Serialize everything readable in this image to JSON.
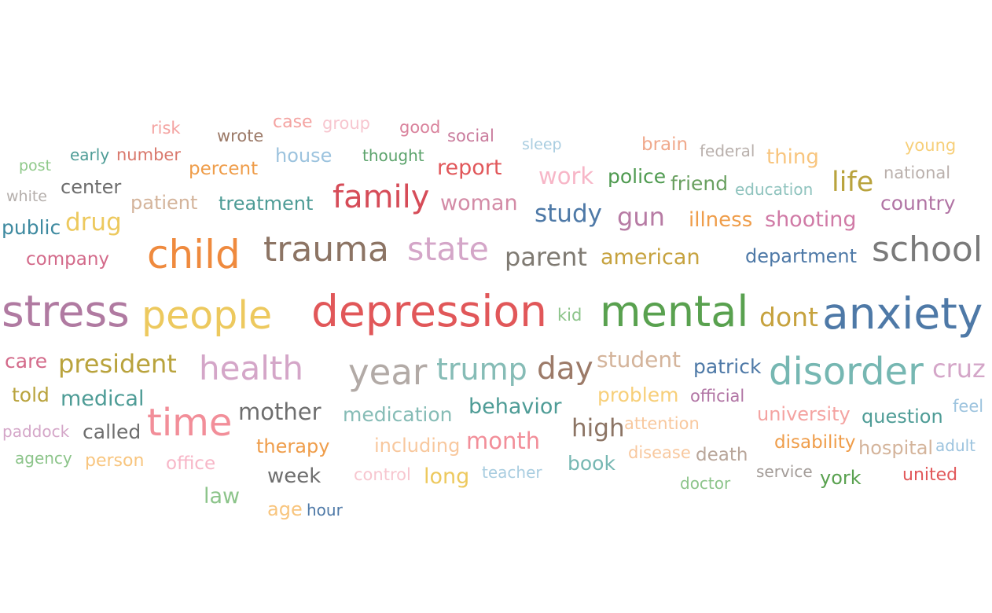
{
  "words": [
    {
      "text": "risk",
      "color": "#f4a3a1"
    },
    {
      "text": "wrote",
      "color": "#9c7a68"
    },
    {
      "text": "case",
      "color": "#f4a3a1"
    },
    {
      "text": "group",
      "color": "#f7c6cf"
    },
    {
      "text": "good",
      "color": "#d9829c"
    },
    {
      "text": "social",
      "color": "#c97b9c"
    },
    {
      "text": "sleep",
      "color": "#a9cde0"
    },
    {
      "text": "brain",
      "color": "#f0a98c"
    },
    {
      "text": "federal",
      "color": "#b9b0ac"
    },
    {
      "text": "thing",
      "color": "#f8c57e"
    },
    {
      "text": "young",
      "color": "#f7cf79"
    },
    {
      "text": "post",
      "color": "#8fc98a"
    },
    {
      "text": "early",
      "color": "#4e9c96"
    },
    {
      "text": "number",
      "color": "#d9786c"
    },
    {
      "text": "percent",
      "color": "#ef9d4a"
    },
    {
      "text": "house",
      "color": "#9cc3de"
    },
    {
      "text": "thought",
      "color": "#5ba36b"
    },
    {
      "text": "report",
      "color": "#e1575a"
    },
    {
      "text": "work",
      "color": "#f7b6c7"
    },
    {
      "text": "police",
      "color": "#4e9a4f"
    },
    {
      "text": "friend",
      "color": "#6aa060"
    },
    {
      "text": "education",
      "color": "#8fc3be"
    },
    {
      "text": "life",
      "color": "#b9a33d"
    },
    {
      "text": "national",
      "color": "#bab0ac"
    },
    {
      "text": "white",
      "color": "#b4aeab"
    },
    {
      "text": "center",
      "color": "#6e6e6e"
    },
    {
      "text": "patient",
      "color": "#d4b49b"
    },
    {
      "text": "treatment",
      "color": "#4e9c96"
    },
    {
      "text": "family",
      "color": "#d64c58"
    },
    {
      "text": "woman",
      "color": "#d38ba6"
    },
    {
      "text": "study",
      "color": "#4e79a7"
    },
    {
      "text": "gun",
      "color": "#b77ba4"
    },
    {
      "text": "illness",
      "color": "#ef9d4a"
    },
    {
      "text": "shooting",
      "color": "#d07aa6"
    },
    {
      "text": "country",
      "color": "#b174a4"
    },
    {
      "text": "public",
      "color": "#3e8aa0"
    },
    {
      "text": "drug",
      "color": "#edc95e"
    },
    {
      "text": "company",
      "color": "#d36a8a"
    },
    {
      "text": "child",
      "color": "#ef8a3e"
    },
    {
      "text": "trauma",
      "color": "#8c7464"
    },
    {
      "text": "state",
      "color": "#d4a6c8"
    },
    {
      "text": "parent",
      "color": "#7f7a72"
    },
    {
      "text": "american",
      "color": "#c6a23e"
    },
    {
      "text": "department",
      "color": "#4e79a7"
    },
    {
      "text": "school",
      "color": "#7a7a7a"
    },
    {
      "text": "stress",
      "color": "#b07aa1"
    },
    {
      "text": "people",
      "color": "#edc95e"
    },
    {
      "text": "depression",
      "color": "#e15759"
    },
    {
      "text": "kid",
      "color": "#8cc48a"
    },
    {
      "text": "mental",
      "color": "#59a14f"
    },
    {
      "text": "dont",
      "color": "#c6a23e"
    },
    {
      "text": "anxiety",
      "color": "#4e79a7"
    },
    {
      "text": "care",
      "color": "#d36a8a"
    },
    {
      "text": "president",
      "color": "#b9a33d"
    },
    {
      "text": "health",
      "color": "#d4a6c8"
    },
    {
      "text": "year",
      "color": "#b2aaa6"
    },
    {
      "text": "trump",
      "color": "#86bcb6"
    },
    {
      "text": "day",
      "color": "#9c7a68"
    },
    {
      "text": "student",
      "color": "#d4b49b"
    },
    {
      "text": "patrick",
      "color": "#4e79a7"
    },
    {
      "text": "disorder",
      "color": "#76b7b2"
    },
    {
      "text": "cruz",
      "color": "#d4a6c8"
    },
    {
      "text": "told",
      "color": "#b9a33d"
    },
    {
      "text": "medical",
      "color": "#4e9c96"
    },
    {
      "text": "time",
      "color": "#f28e99"
    },
    {
      "text": "mother",
      "color": "#6e6e6e"
    },
    {
      "text": "medication",
      "color": "#86bcb6"
    },
    {
      "text": "behavior",
      "color": "#4e9c96"
    },
    {
      "text": "problem",
      "color": "#f7cf79"
    },
    {
      "text": "official",
      "color": "#b174a4"
    },
    {
      "text": "university",
      "color": "#f4a3a1"
    },
    {
      "text": "question",
      "color": "#4e9c96"
    },
    {
      "text": "feel",
      "color": "#9cc3de"
    },
    {
      "text": "paddock",
      "color": "#d4a6c8"
    },
    {
      "text": "called",
      "color": "#6e6e6e"
    },
    {
      "text": "therapy",
      "color": "#ef9d4a"
    },
    {
      "text": "including",
      "color": "#f8c89e"
    },
    {
      "text": "month",
      "color": "#f28e99"
    },
    {
      "text": "high",
      "color": "#8c7464"
    },
    {
      "text": "attention",
      "color": "#f8c89e"
    },
    {
      "text": "disability",
      "color": "#ef9d4a"
    },
    {
      "text": "hospital",
      "color": "#d4b49b"
    },
    {
      "text": "adult",
      "color": "#9cc3de"
    },
    {
      "text": "agency",
      "color": "#8cc48a"
    },
    {
      "text": "person",
      "color": "#f8c57e"
    },
    {
      "text": "office",
      "color": "#f7b6c7"
    },
    {
      "text": "book",
      "color": "#76b7b2"
    },
    {
      "text": "disease",
      "color": "#f8c89e"
    },
    {
      "text": "death",
      "color": "#b9a69a"
    },
    {
      "text": "week",
      "color": "#6e6e6e"
    },
    {
      "text": "control",
      "color": "#f7c6cf"
    },
    {
      "text": "long",
      "color": "#edc95e"
    },
    {
      "text": "teacher",
      "color": "#a9cde0"
    },
    {
      "text": "service",
      "color": "#a39c98"
    },
    {
      "text": "york",
      "color": "#59a14f"
    },
    {
      "text": "united",
      "color": "#e15759"
    },
    {
      "text": "doctor",
      "color": "#8cc48a"
    },
    {
      "text": "law",
      "color": "#8cc48a"
    },
    {
      "text": "age",
      "color": "#f8c57e"
    },
    {
      "text": "hour",
      "color": "#4e79a7"
    }
  ]
}
